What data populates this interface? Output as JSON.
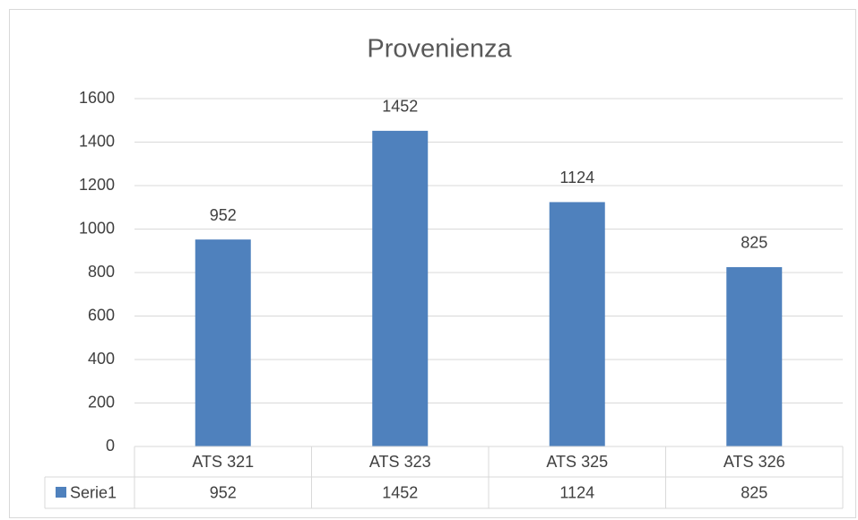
{
  "chart_data": {
    "type": "bar",
    "title": "Provenienza",
    "categories": [
      "ATS 321",
      "ATS 323",
      "ATS 325",
      "ATS 326"
    ],
    "series": [
      {
        "name": "Serie1",
        "color": "#4f81bd",
        "values": [
          952,
          1452,
          1124,
          825
        ]
      }
    ],
    "ylim": [
      0,
      1600
    ],
    "yticks": [
      0,
      200,
      400,
      600,
      800,
      1000,
      1200,
      1400,
      1600
    ],
    "grid": true,
    "data_table": true
  }
}
